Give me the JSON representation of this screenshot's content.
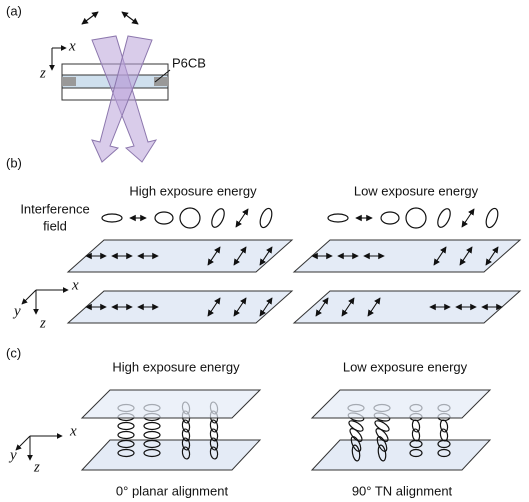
{
  "panel_a": {
    "label": "(a)",
    "axis_x": "x",
    "axis_z": "z",
    "material": "P6CB"
  },
  "panel_b": {
    "label": "(b)",
    "left_title": "High exposure energy",
    "right_title": "Low exposure energy",
    "row_label": [
      "Interference",
      "field"
    ],
    "axis_x": "x",
    "axis_y": "y",
    "axis_z": "z"
  },
  "panel_c": {
    "label": "(c)",
    "left_title": "High exposure energy",
    "right_title": "Low exposure energy",
    "axis_x": "x",
    "axis_y": "y",
    "axis_z": "z",
    "left_caption": "0° planar alignment",
    "right_caption": "90° TN alignment"
  }
}
